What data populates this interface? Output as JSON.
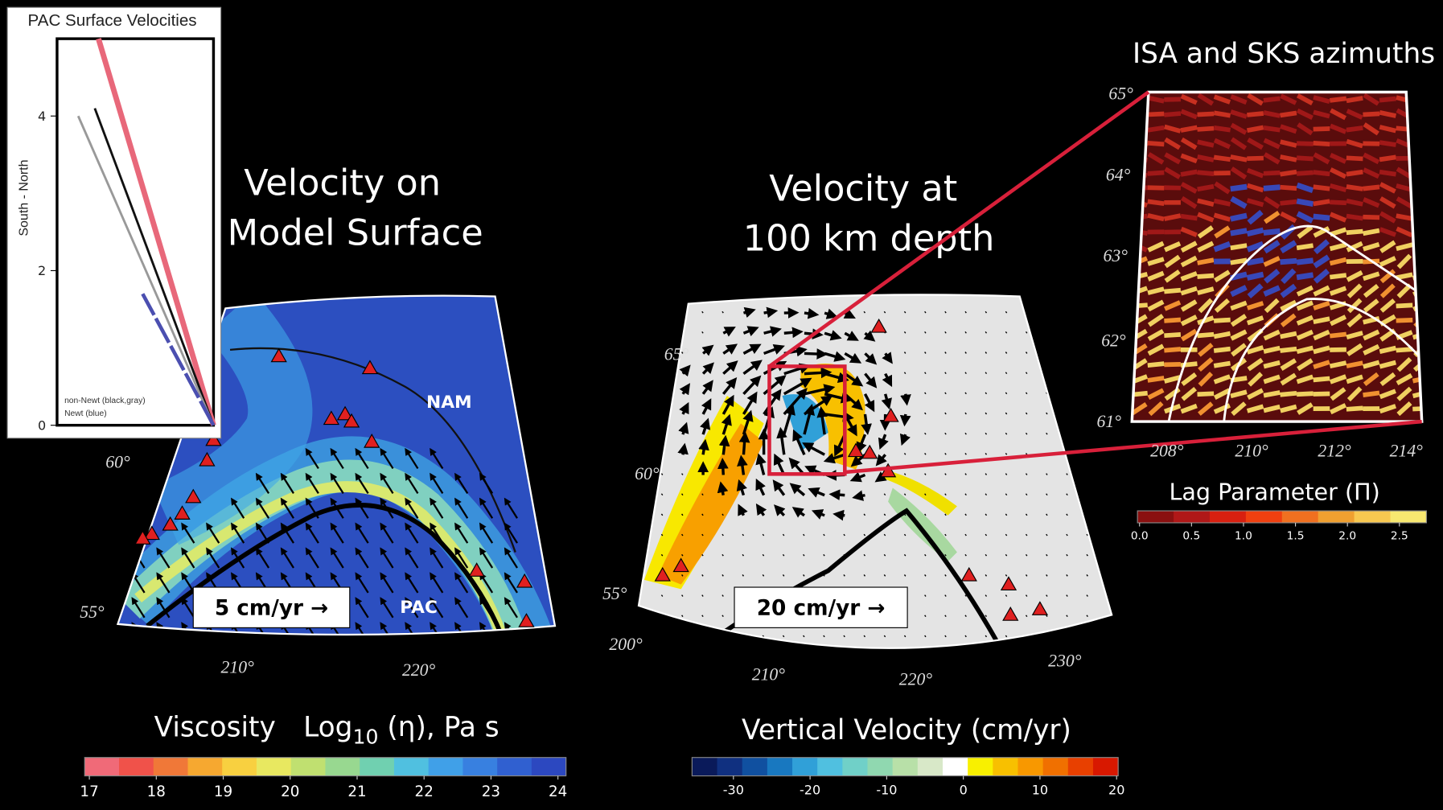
{
  "inset_chart": {
    "title": "PAC Surface Velocities",
    "ylabel": "South - North",
    "ylim": [
      0,
      5
    ],
    "yticks": [
      0,
      2,
      4
    ],
    "series": [
      {
        "color": "#e8687a",
        "values": [
          5
        ]
      },
      {
        "color": "#111111",
        "values": [
          4.1
        ]
      },
      {
        "color": "#999999",
        "values": [
          4.0
        ]
      },
      {
        "color": "#4b4fb0",
        "values": [
          1.7
        ]
      }
    ],
    "legend": [
      "non-Newt (black,gray)",
      "Newt (blue)"
    ]
  },
  "panel_surface": {
    "title": [
      "Velocity on",
      "Model Surface"
    ],
    "nam": "NAM",
    "pac": "PAC",
    "scale": "5 cm/yr →",
    "lat_labels": [
      "60°",
      "55°"
    ],
    "lon_labels": [
      "210°",
      "220°"
    ]
  },
  "panel_depth": {
    "title": [
      "Velocity at",
      "100 km depth"
    ],
    "scale": "20 cm/yr →",
    "lat_labels": [
      "65°",
      "60°",
      "55°"
    ],
    "lon_labels": [
      "200°",
      "210°",
      "220°",
      "230°"
    ]
  },
  "panel_isa": {
    "title": "ISA and SKS azimuths",
    "lat_labels": [
      "65°",
      "64°",
      "63°",
      "62°",
      "61°"
    ],
    "lon_labels": [
      "208°",
      "210°",
      "212°",
      "214°"
    ]
  },
  "colorbar_viscosity": {
    "title": [
      "Viscosity",
      "Log",
      "10",
      " (η),  Pa s"
    ],
    "range": [
      16.93,
      24.12
    ],
    "ticks": [
      17,
      18,
      19,
      20,
      21,
      22,
      23,
      24
    ],
    "colors": [
      "#f06a78",
      "#f0524a",
      "#f07838",
      "#f6a830",
      "#f8d040",
      "#e8e860",
      "#c0e070",
      "#98d890",
      "#70d0b0",
      "#50c0e0",
      "#40a0e8",
      "#3880e0",
      "#3060d0",
      "#2c48c0"
    ]
  },
  "colorbar_velocity": {
    "title": "Vertical  Velocity (cm/yr)",
    "range": [
      -35.4,
      20.2
    ],
    "ticks": [
      -30,
      -20,
      -10,
      0,
      10,
      20
    ],
    "colors": [
      "#0a1a5a",
      "#103080",
      "#1050a0",
      "#1878c0",
      "#30a0d8",
      "#50c0e0",
      "#70d0c8",
      "#90d8b0",
      "#b8e0a8",
      "#d8e8c8",
      "#ffffff",
      "#f8f000",
      "#f8c000",
      "#f89800",
      "#f07000",
      "#e84000",
      "#d81800"
    ]
  },
  "colorbar_lag": {
    "title": "Lag Parameter (Π)",
    "range": [
      -0.02,
      2.76
    ],
    "ticks": [
      {
        "value": 0,
        "label": "0.0"
      },
      {
        "value": 0.5,
        "label": "0.5"
      },
      {
        "value": 1,
        "label": "1.0"
      },
      {
        "value": 1.5,
        "label": "1.5"
      },
      {
        "value": 2,
        "label": "2.0"
      },
      {
        "value": 2.5,
        "label": "2.5"
      }
    ],
    "colors": [
      "#8a1010",
      "#b01818",
      "#d82010",
      "#f04010",
      "#f07020",
      "#f0a030",
      "#f8c850",
      "#f8e870"
    ]
  }
}
